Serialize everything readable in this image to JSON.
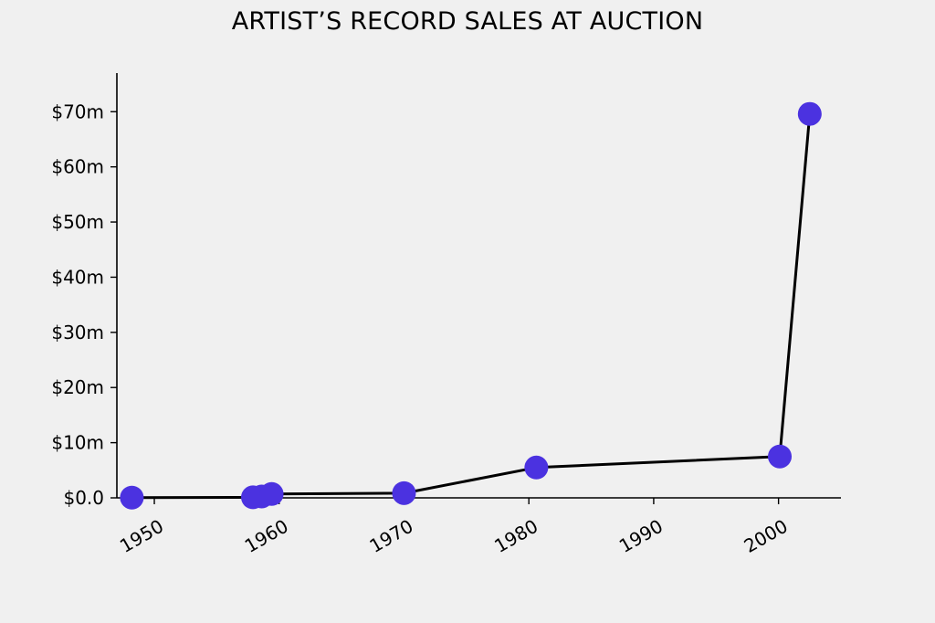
{
  "chart_data": {
    "type": "line",
    "title": "ARTIST’S RECORD SALES AT AUCTION",
    "xlabel": "",
    "ylabel": "",
    "xlim": [
      1947,
      2005
    ],
    "ylim": [
      0,
      77
    ],
    "x_ticks": [
      1950,
      1960,
      1970,
      1980,
      1990,
      2000
    ],
    "x_tick_labels": [
      "1950",
      "1960",
      "1970",
      "1980",
      "1990",
      "2000"
    ],
    "y_ticks": [
      0,
      10,
      20,
      30,
      40,
      50,
      60,
      70
    ],
    "y_tick_labels": [
      "$0.0",
      "$10m",
      "$20m",
      "$30m",
      "$40m",
      "$50m",
      "$60m",
      "$70m"
    ],
    "grid": false,
    "series": [
      {
        "x": [
          1948.2,
          1957.9,
          1958.6,
          1959.4,
          1970.0,
          1980.6,
          2000.1,
          2002.5
        ],
        "y": [
          0.05,
          0.1,
          0.25,
          0.7,
          0.85,
          5.5,
          7.5,
          69.6
        ]
      }
    ],
    "line_color": "#000000",
    "marker_color": "#4b32e0",
    "background": "#f0f0f0"
  }
}
